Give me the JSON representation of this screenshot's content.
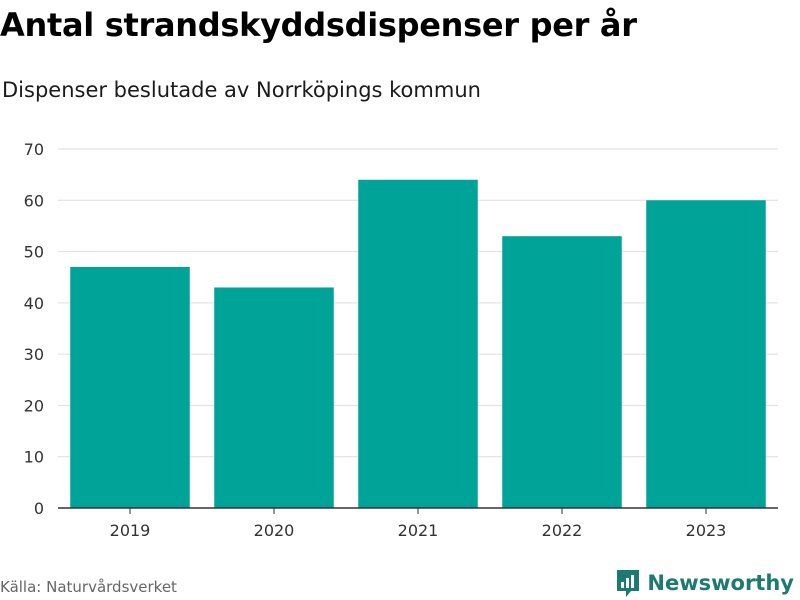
{
  "header": {
    "title": "Antal strandskyddsdispenser per år",
    "subtitle": "Dispenser beslutade av Norrköpings kommun"
  },
  "footer": {
    "source": "Källa: Naturvårdsverket",
    "brand": "Newsworthy"
  },
  "colors": {
    "bar": "#00a398",
    "grid": "#dddddd",
    "axis": "#333333",
    "brand": "#1e7a70"
  },
  "chart_data": {
    "type": "bar",
    "title": "Antal strandskyddsdispenser per år",
    "subtitle": "Dispenser beslutade av Norrköpings kommun",
    "xlabel": "",
    "ylabel": "",
    "categories": [
      "2019",
      "2020",
      "2021",
      "2022",
      "2023"
    ],
    "values": [
      47,
      43,
      64,
      53,
      60
    ],
    "ylim": [
      0,
      70
    ],
    "yticks": [
      0,
      10,
      20,
      30,
      40,
      50,
      60,
      70
    ],
    "grid": true
  }
}
